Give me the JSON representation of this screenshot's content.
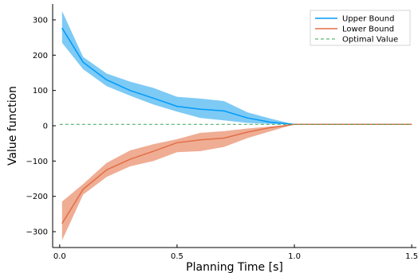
{
  "chart_data": {
    "type": "line",
    "title": "",
    "xlabel": "Planning Time [s]",
    "ylabel": "Value function",
    "xlim": [
      -0.03,
      1.52
    ],
    "ylim": [
      -345,
      345
    ],
    "xticks": [
      0.0,
      0.5,
      1.0,
      1.5
    ],
    "xtick_labels": [
      "0.0",
      "0.5",
      "1.0",
      "1.5"
    ],
    "yticks": [
      300,
      200,
      100,
      0,
      -100,
      -200,
      -300
    ],
    "ytick_labels": [
      "300",
      "200",
      "100",
      "0",
      "−100",
      "−200",
      "−300"
    ],
    "grid": false,
    "legend_position": "top-right",
    "series": [
      {
        "name": "Upper Bound",
        "color": "#009AFA",
        "band_color": "#7DCAF5",
        "style": "solid",
        "x": [
          0.01,
          0.1,
          0.2,
          0.3,
          0.4,
          0.5,
          0.6,
          0.7,
          0.8,
          0.9,
          1.0,
          1.1,
          1.2,
          1.3,
          1.4,
          1.5
        ],
        "y": [
          277,
          180,
          130,
          100,
          78,
          55,
          47,
          42,
          22,
          10,
          4,
          4,
          4,
          4,
          4,
          4
        ],
        "upper": [
          325,
          195,
          148,
          125,
          107,
          82,
          77,
          70,
          38,
          20,
          4,
          4,
          4,
          4,
          4,
          4
        ],
        "lower": [
          235,
          160,
          112,
          85,
          60,
          40,
          22,
          15,
          8,
          5,
          4,
          4,
          4,
          4,
          4,
          4
        ]
      },
      {
        "name": "Lower Bound",
        "color": "#E26F46",
        "band_color": "#EFAD94",
        "style": "solid",
        "x": [
          0.01,
          0.1,
          0.2,
          0.3,
          0.4,
          0.5,
          0.6,
          0.7,
          0.8,
          0.9,
          1.0,
          1.1,
          1.2,
          1.3,
          1.4,
          1.5
        ],
        "y": [
          -277,
          -180,
          -125,
          -95,
          -72,
          -48,
          -40,
          -35,
          -18,
          -5,
          4,
          4,
          4,
          4,
          4,
          4
        ],
        "upper": [
          -215,
          -165,
          -105,
          -70,
          -52,
          -38,
          -20,
          -15,
          -8,
          -2,
          4,
          4,
          4,
          4,
          4,
          4
        ],
        "lower": [
          -325,
          -195,
          -145,
          -115,
          -100,
          -75,
          -72,
          -60,
          -35,
          -15,
          4,
          4,
          4,
          4,
          4,
          4
        ]
      },
      {
        "name": "Optimal Value",
        "color": "#3BA55C",
        "style": "dashed",
        "x": [
          0.0,
          1.5
        ],
        "y": [
          4,
          4
        ]
      }
    ]
  }
}
